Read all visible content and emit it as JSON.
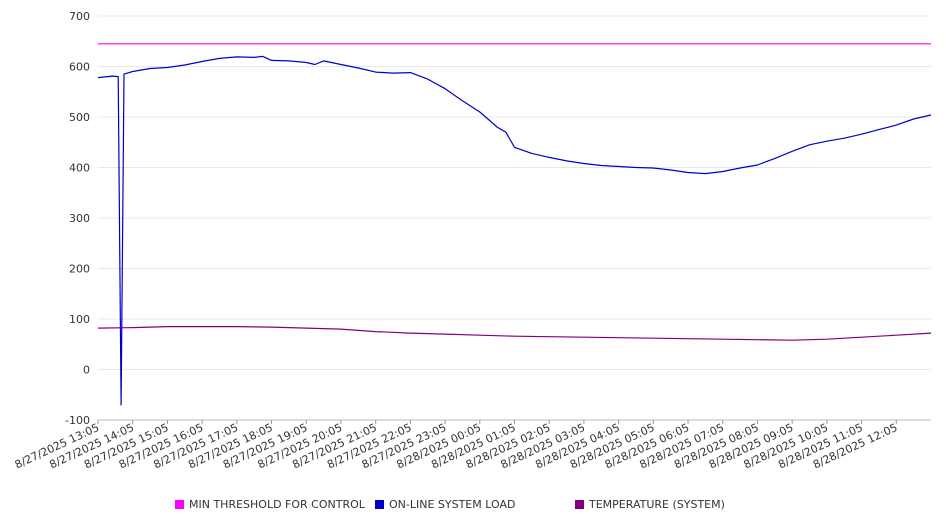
{
  "chart_data": {
    "type": "line",
    "title": "",
    "xlabel": "",
    "ylabel": "",
    "ylim": [
      -100,
      700
    ],
    "yticks": [
      -100,
      0,
      100,
      200,
      300,
      400,
      500,
      600,
      700
    ],
    "grid": "horizontal",
    "legend_position": "bottom",
    "x_start": "8/27/2025 13:05",
    "x_end": "8/28/2025 13:05",
    "xtick_labels": [
      "8/27/2025 13:05",
      "8/27/2025 14:05",
      "8/27/2025 15:05",
      "8/27/2025 16:05",
      "8/27/2025 17:05",
      "8/27/2025 18:05",
      "8/27/2025 19:05",
      "8/27/2025 20:05",
      "8/27/2025 21:05",
      "8/27/2025 22:05",
      "8/27/2025 23:05",
      "8/28/2025 00:05",
      "8/28/2025 01:05",
      "8/28/2025 02:05",
      "8/28/2025 03:05",
      "8/28/2025 04:05",
      "8/28/2025 05:05",
      "8/28/2025 06:05",
      "8/28/2025 07:05",
      "8/28/2025 08:05",
      "8/28/2025 09:05",
      "8/28/2025 10:05",
      "8/28/2025 11:05",
      "8/28/2025 12:05"
    ],
    "series": [
      {
        "name": "MIN THRESHOLD FOR CONTROL",
        "color": "#ff00ff",
        "points": [
          [
            "8/27/2025 13:05",
            645
          ],
          [
            "8/28/2025 13:05",
            645
          ]
        ]
      },
      {
        "name": "ON-LINE SYSTEM LOAD",
        "color": "#0000cc",
        "points": [
          [
            "8/27/2025 13:05",
            578
          ],
          [
            "8/27/2025 13:30",
            581
          ],
          [
            "8/27/2025 13:40",
            580
          ],
          [
            "8/27/2025 13:45",
            -70
          ],
          [
            "8/27/2025 13:50",
            585
          ],
          [
            "8/27/2025 14:05",
            590
          ],
          [
            "8/27/2025 14:35",
            596
          ],
          [
            "8/27/2025 15:05",
            598
          ],
          [
            "8/27/2025 15:35",
            603
          ],
          [
            "8/27/2025 16:05",
            610
          ],
          [
            "8/27/2025 16:35",
            616
          ],
          [
            "8/27/2025 17:05",
            619
          ],
          [
            "8/27/2025 17:35",
            618
          ],
          [
            "8/27/2025 17:50",
            620
          ],
          [
            "8/27/2025 18:05",
            612
          ],
          [
            "8/27/2025 18:35",
            611
          ],
          [
            "8/27/2025 19:05",
            608
          ],
          [
            "8/27/2025 19:20",
            604
          ],
          [
            "8/27/2025 19:35",
            611
          ],
          [
            "8/27/2025 20:05",
            604
          ],
          [
            "8/27/2025 20:35",
            597
          ],
          [
            "8/27/2025 21:05",
            589
          ],
          [
            "8/27/2025 21:35",
            587
          ],
          [
            "8/27/2025 22:05",
            588
          ],
          [
            "8/27/2025 22:35",
            575
          ],
          [
            "8/27/2025 23:05",
            556
          ],
          [
            "8/27/2025 23:35",
            532
          ],
          [
            "8/28/2025 00:05",
            510
          ],
          [
            "8/28/2025 00:20",
            495
          ],
          [
            "8/28/2025 00:35",
            480
          ],
          [
            "8/28/2025 00:50",
            470
          ],
          [
            "8/28/2025 01:05",
            440
          ],
          [
            "8/28/2025 01:35",
            428
          ],
          [
            "8/28/2025 02:05",
            420
          ],
          [
            "8/28/2025 02:35",
            413
          ],
          [
            "8/28/2025 03:05",
            408
          ],
          [
            "8/28/2025 03:35",
            404
          ],
          [
            "8/28/2025 04:05",
            402
          ],
          [
            "8/28/2025 04:35",
            400
          ],
          [
            "8/28/2025 05:05",
            399
          ],
          [
            "8/28/2025 05:35",
            395
          ],
          [
            "8/28/2025 06:05",
            390
          ],
          [
            "8/28/2025 06:35",
            388
          ],
          [
            "8/28/2025 07:05",
            392
          ],
          [
            "8/28/2025 07:35",
            399
          ],
          [
            "8/28/2025 08:05",
            405
          ],
          [
            "8/28/2025 08:35",
            418
          ],
          [
            "8/28/2025 09:05",
            432
          ],
          [
            "8/28/2025 09:35",
            445
          ],
          [
            "8/28/2025 10:05",
            452
          ],
          [
            "8/28/2025 10:35",
            458
          ],
          [
            "8/28/2025 11:05",
            466
          ],
          [
            "8/28/2025 11:35",
            475
          ],
          [
            "8/28/2025 12:05",
            484
          ],
          [
            "8/28/2025 12:35",
            496
          ],
          [
            "8/28/2025 13:05",
            504
          ]
        ]
      },
      {
        "name": "TEMPERATURE (SYSTEM)",
        "color": "#800080",
        "points": [
          [
            "8/27/2025 13:05",
            82
          ],
          [
            "8/27/2025 14:05",
            83
          ],
          [
            "8/27/2025 15:05",
            85
          ],
          [
            "8/27/2025 16:05",
            85
          ],
          [
            "8/27/2025 17:05",
            85
          ],
          [
            "8/27/2025 18:05",
            84
          ],
          [
            "8/27/2025 19:05",
            82
          ],
          [
            "8/27/2025 20:05",
            80
          ],
          [
            "8/27/2025 21:05",
            75
          ],
          [
            "8/27/2025 22:05",
            72
          ],
          [
            "8/27/2025 23:05",
            70
          ],
          [
            "8/28/2025 00:05",
            68
          ],
          [
            "8/28/2025 01:05",
            66
          ],
          [
            "8/28/2025 02:05",
            65
          ],
          [
            "8/28/2025 03:05",
            64
          ],
          [
            "8/28/2025 04:05",
            63
          ],
          [
            "8/28/2025 05:05",
            62
          ],
          [
            "8/28/2025 06:05",
            61
          ],
          [
            "8/28/2025 07:05",
            60
          ],
          [
            "8/28/2025 08:05",
            59
          ],
          [
            "8/28/2025 09:05",
            58
          ],
          [
            "8/28/2025 10:05",
            60
          ],
          [
            "8/28/2025 11:05",
            64
          ],
          [
            "8/28/2025 12:05",
            68
          ],
          [
            "8/28/2025 13:05",
            72
          ]
        ]
      }
    ]
  }
}
